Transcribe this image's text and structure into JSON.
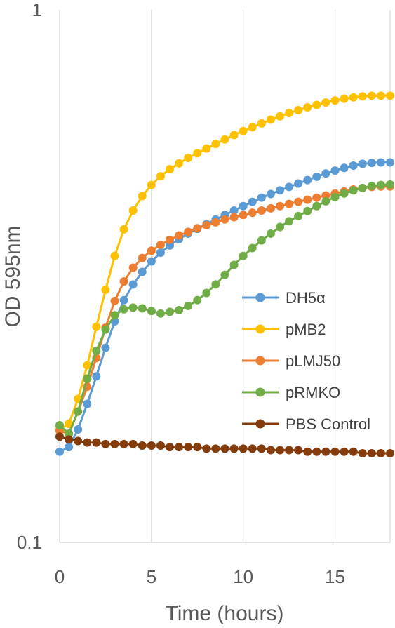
{
  "chart_data": {
    "type": "line",
    "xlabel": "Time (hours)",
    "ylabel": "OD 595nm",
    "x_ticks": [
      "0",
      "5",
      "10",
      "15"
    ],
    "y_ticks": [
      "0.1",
      "1"
    ],
    "xlim": [
      0,
      18
    ],
    "ylim": [
      0.1,
      1
    ],
    "y_scale": "log",
    "grid": "vertical major gridlines",
    "legend_position": "right, middle",
    "x": [
      0,
      0.5,
      1,
      1.5,
      2,
      2.5,
      3,
      3.5,
      4,
      4.5,
      5,
      5.5,
      6,
      6.5,
      7,
      7.5,
      8,
      8.5,
      9,
      9.5,
      10,
      10.5,
      11,
      11.5,
      12,
      12.5,
      13,
      13.5,
      14,
      14.5,
      15,
      15.5,
      16,
      16.5,
      17,
      17.5,
      18
    ],
    "series": [
      {
        "name": "DH5α",
        "color": "#5B9BD5",
        "values": [
          0.148,
          0.151,
          0.163,
          0.182,
          0.205,
          0.232,
          0.26,
          0.285,
          0.305,
          0.322,
          0.337,
          0.35,
          0.361,
          0.371,
          0.38,
          0.388,
          0.396,
          0.404,
          0.412,
          0.42,
          0.428,
          0.436,
          0.444,
          0.451,
          0.458,
          0.465,
          0.472,
          0.479,
          0.486,
          0.493,
          0.499,
          0.505,
          0.51,
          0.514,
          0.516,
          0.517,
          0.517
        ]
      },
      {
        "name": "pMB2",
        "color": "#FFC000",
        "values": [
          0.163,
          0.167,
          0.186,
          0.215,
          0.254,
          0.298,
          0.345,
          0.387,
          0.42,
          0.447,
          0.469,
          0.487,
          0.502,
          0.515,
          0.527,
          0.538,
          0.549,
          0.56,
          0.571,
          0.582,
          0.592,
          0.602,
          0.612,
          0.622,
          0.631,
          0.64,
          0.648,
          0.656,
          0.663,
          0.67,
          0.676,
          0.681,
          0.685,
          0.688,
          0.69,
          0.69,
          0.69
        ]
      },
      {
        "name": "pLMJ50",
        "color": "#ED7D31",
        "values": [
          0.162,
          0.16,
          0.176,
          0.196,
          0.222,
          0.253,
          0.284,
          0.309,
          0.328,
          0.342,
          0.353,
          0.362,
          0.37,
          0.377,
          0.383,
          0.389,
          0.394,
          0.399,
          0.404,
          0.408,
          0.412,
          0.416,
          0.42,
          0.424,
          0.428,
          0.432,
          0.436,
          0.44,
          0.444,
          0.448,
          0.452,
          0.456,
          0.46,
          0.463,
          0.465,
          0.466,
          0.466
        ]
      },
      {
        "name": "pRMKO",
        "color": "#70AD47",
        "values": [
          0.166,
          0.16,
          0.176,
          0.203,
          0.229,
          0.251,
          0.267,
          0.274,
          0.276,
          0.275,
          0.272,
          0.269,
          0.271,
          0.273,
          0.278,
          0.285,
          0.294,
          0.305,
          0.318,
          0.332,
          0.345,
          0.357,
          0.369,
          0.38,
          0.391,
          0.401,
          0.41,
          0.419,
          0.428,
          0.437,
          0.445,
          0.452,
          0.458,
          0.463,
          0.467,
          0.469,
          0.47
        ]
      },
      {
        "name": "PBS Control",
        "color": "#843C0C",
        "values": [
          0.158,
          0.156,
          0.155,
          0.154,
          0.154,
          0.153,
          0.153,
          0.153,
          0.153,
          0.152,
          0.152,
          0.152,
          0.151,
          0.151,
          0.151,
          0.151,
          0.15,
          0.15,
          0.15,
          0.15,
          0.15,
          0.15,
          0.15,
          0.149,
          0.149,
          0.149,
          0.149,
          0.148,
          0.148,
          0.148,
          0.148,
          0.148,
          0.148,
          0.147,
          0.147,
          0.147,
          0.147
        ]
      }
    ]
  }
}
